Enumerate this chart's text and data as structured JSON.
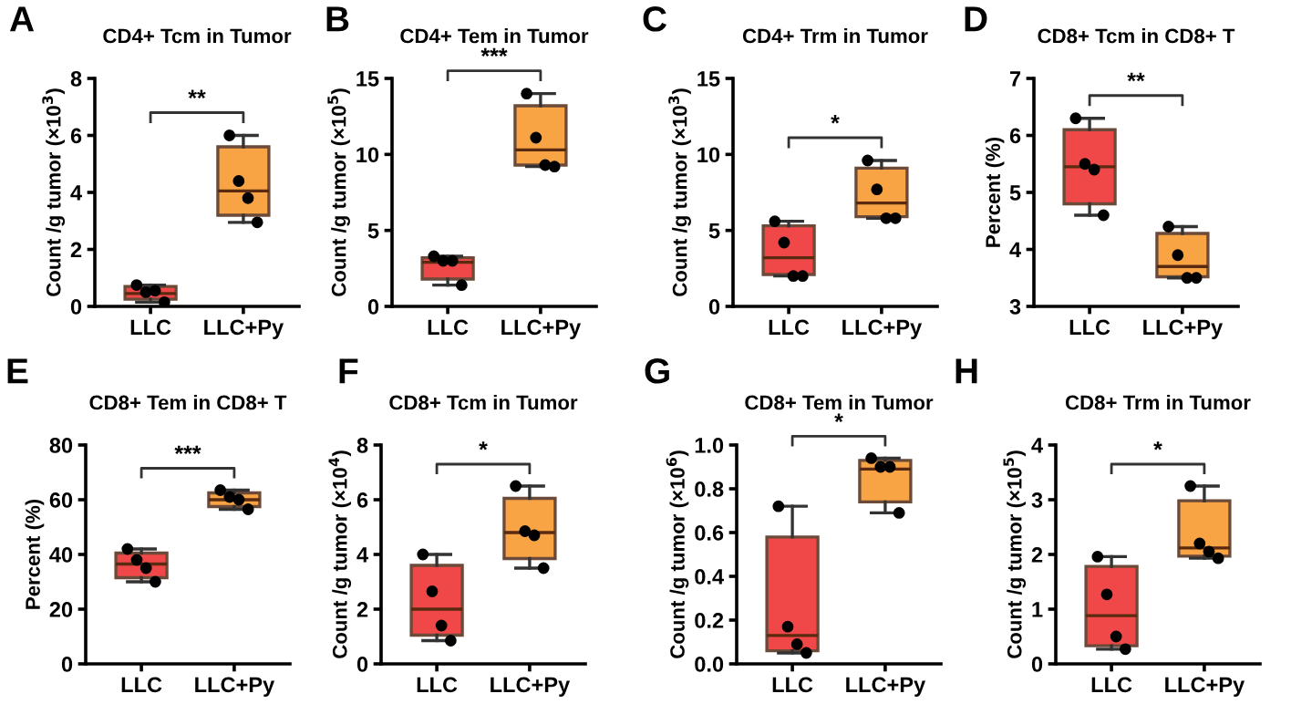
{
  "chart_data": [
    {
      "type": "box",
      "title": "CD4+ Tcm in Tumor",
      "ylabel": "Count /g tumor (×10$^{3}$)",
      "categories": [
        "LLC",
        "LLC+Py"
      ],
      "ylim": [
        0,
        8
      ],
      "yticks": [
        0,
        2,
        4,
        6,
        8
      ],
      "colors": [
        "#f04848",
        "#f8a444"
      ],
      "annotations": [
        "A",
        "**"
      ],
      "boxes": [
        {
          "low": 0.15,
          "q1": 0.25,
          "median": 0.45,
          "q3": 0.7,
          "high": 0.75
        },
        {
          "low": 2.95,
          "q1": 3.2,
          "median": 4.05,
          "q3": 5.6,
          "high": 6.0
        }
      ],
      "series": [
        {
          "type": "scatter",
          "color": "#000000",
          "x": [
            "LLC",
            "LLC",
            "LLC",
            "LLC",
            "LLC+Py",
            "LLC+Py",
            "LLC+Py",
            "LLC+Py"
          ],
          "values": [
            0.75,
            0.5,
            0.55,
            0.15,
            6.0,
            4.4,
            3.8,
            2.95
          ]
        }
      ]
    },
    {
      "type": "box",
      "title": "CD4+ Tem in Tumor",
      "ylabel": "Count /g tumor (×10$^{5}$)",
      "categories": [
        "LLC",
        "LLC+Py"
      ],
      "ylim": [
        0,
        15
      ],
      "yticks": [
        0,
        5,
        10,
        15
      ],
      "colors": [
        "#f04848",
        "#f8a444"
      ],
      "annotations": [
        "B",
        "***"
      ],
      "boxes": [
        {
          "low": 1.4,
          "q1": 1.8,
          "median": 2.9,
          "q3": 3.2,
          "high": 3.3
        },
        {
          "low": 9.2,
          "q1": 9.3,
          "median": 10.3,
          "q3": 13.2,
          "high": 14.0
        }
      ],
      "series": [
        {
          "type": "scatter",
          "color": "#000000",
          "x": [
            "LLC",
            "LLC",
            "LLC",
            "LLC",
            "LLC+Py",
            "LLC+Py",
            "LLC+Py",
            "LLC+Py"
          ],
          "values": [
            3.3,
            3.0,
            3.0,
            1.4,
            14.0,
            11.1,
            9.3,
            9.2
          ]
        }
      ]
    },
    {
      "type": "box",
      "title": "CD4+ Trm in Tumor",
      "ylabel": "Count /g tumor (×10$^{3}$)",
      "categories": [
        "LLC",
        "LLC+Py"
      ],
      "ylim": [
        0,
        15
      ],
      "yticks": [
        0,
        5,
        10,
        15
      ],
      "colors": [
        "#f04848",
        "#f8a444"
      ],
      "annotations": [
        "C",
        "*"
      ],
      "boxes": [
        {
          "low": 2.0,
          "q1": 2.1,
          "median": 3.2,
          "q3": 5.3,
          "high": 5.6
        },
        {
          "low": 5.8,
          "q1": 5.9,
          "median": 6.8,
          "q3": 9.1,
          "high": 9.6
        }
      ],
      "series": [
        {
          "type": "scatter",
          "color": "#000000",
          "x": [
            "LLC",
            "LLC",
            "LLC",
            "LLC",
            "LLC+Py",
            "LLC+Py",
            "LLC+Py",
            "LLC+Py"
          ],
          "values": [
            5.6,
            4.2,
            2.0,
            2.0,
            9.6,
            7.7,
            5.8,
            5.8
          ]
        }
      ]
    },
    {
      "type": "box",
      "title": "CD8+ Tcm in CD8+ T",
      "ylabel": "Percent (%)",
      "categories": [
        "LLC",
        "LLC+Py"
      ],
      "ylim": [
        3,
        7
      ],
      "yticks": [
        3,
        4,
        5,
        6,
        7
      ],
      "colors": [
        "#f04848",
        "#f8a444"
      ],
      "annotations": [
        "D",
        "**"
      ],
      "boxes": [
        {
          "low": 4.6,
          "q1": 4.8,
          "median": 5.45,
          "q3": 6.1,
          "high": 6.3
        },
        {
          "low": 3.5,
          "q1": 3.52,
          "median": 3.7,
          "q3": 4.28,
          "high": 4.4
        }
      ],
      "series": [
        {
          "type": "scatter",
          "color": "#000000",
          "x": [
            "LLC",
            "LLC",
            "LLC",
            "LLC",
            "LLC+Py",
            "LLC+Py",
            "LLC+Py",
            "LLC+Py"
          ],
          "values": [
            6.3,
            5.5,
            5.4,
            4.6,
            4.4,
            3.9,
            3.5,
            3.5
          ]
        }
      ]
    },
    {
      "type": "box",
      "title": "CD8+ Tem in CD8+ T",
      "ylabel": "Percent (%)",
      "categories": [
        "LLC",
        "LLC+Py"
      ],
      "ylim": [
        0,
        80
      ],
      "yticks": [
        0,
        20,
        40,
        60,
        80
      ],
      "colors": [
        "#f04848",
        "#f8a444"
      ],
      "annotations": [
        "E",
        "***"
      ],
      "boxes": [
        {
          "low": 30,
          "q1": 31.5,
          "median": 36.5,
          "q3": 40.5,
          "high": 42
        },
        {
          "low": 56.5,
          "q1": 57.5,
          "median": 60,
          "q3": 62.5,
          "high": 63.5
        }
      ],
      "series": [
        {
          "type": "scatter",
          "color": "#000000",
          "x": [
            "LLC",
            "LLC",
            "LLC",
            "LLC",
            "LLC+Py",
            "LLC+Py",
            "LLC+Py",
            "LLC+Py"
          ],
          "values": [
            42,
            38,
            35,
            30,
            63.5,
            61,
            60,
            56.5
          ]
        }
      ]
    },
    {
      "type": "box",
      "title": "CD8+ Tcm in Tumor",
      "ylabel": "Count /g tumor (×10$^{4}$)",
      "categories": [
        "LLC",
        "LLC+Py"
      ],
      "ylim": [
        0,
        8
      ],
      "yticks": [
        0,
        2,
        4,
        6,
        8
      ],
      "colors": [
        "#f04848",
        "#f8a444"
      ],
      "annotations": [
        "F",
        "*"
      ],
      "boxes": [
        {
          "low": 0.85,
          "q1": 1.05,
          "median": 2.0,
          "q3": 3.6,
          "high": 4.0
        },
        {
          "low": 3.5,
          "q1": 3.85,
          "median": 4.8,
          "q3": 6.05,
          "high": 6.5
        }
      ],
      "series": [
        {
          "type": "scatter",
          "color": "#000000",
          "x": [
            "LLC",
            "LLC",
            "LLC",
            "LLC",
            "LLC+Py",
            "LLC+Py",
            "LLC+Py",
            "LLC+Py"
          ],
          "values": [
            4.0,
            2.65,
            1.4,
            0.85,
            6.5,
            4.85,
            4.7,
            3.5
          ]
        }
      ]
    },
    {
      "type": "box",
      "title": "CD8+ Tem in Tumor",
      "ylabel": "Count /g tumor (×10$^{6}$)",
      "categories": [
        "LLC",
        "LLC+Py"
      ],
      "ylim": [
        0,
        1.0
      ],
      "yticks": [
        {
          "value": 0,
          "label": "0.0"
        },
        0.2,
        0.4,
        0.6,
        0.8,
        {
          "value": 1.0,
          "label": "1.0"
        }
      ],
      "colors": [
        "#f04848",
        "#f8a444"
      ],
      "annotations": [
        "G",
        "*"
      ],
      "boxes": [
        {
          "low": 0.05,
          "q1": 0.06,
          "median": 0.13,
          "q3": 0.58,
          "high": 0.72
        },
        {
          "low": 0.69,
          "q1": 0.74,
          "median": 0.89,
          "q3": 0.93,
          "high": 0.94
        }
      ],
      "series": [
        {
          "type": "scatter",
          "color": "#000000",
          "x": [
            "LLC",
            "LLC",
            "LLC",
            "LLC",
            "LLC+Py",
            "LLC+Py",
            "LLC+Py",
            "LLC+Py"
          ],
          "values": [
            0.72,
            0.17,
            0.09,
            0.05,
            0.94,
            0.9,
            0.9,
            0.69
          ]
        }
      ]
    },
    {
      "type": "box",
      "title": "CD8+ Trm in Tumor",
      "ylabel": "Count /g tumor (×10$^{5}$)",
      "categories": [
        "LLC",
        "LLC+Py"
      ],
      "ylim": [
        0,
        4
      ],
      "yticks": [
        0,
        1,
        2,
        3,
        4
      ],
      "colors": [
        "#f04848",
        "#f8a444"
      ],
      "annotations": [
        "H",
        "*"
      ],
      "boxes": [
        {
          "low": 0.27,
          "q1": 0.33,
          "median": 0.88,
          "q3": 1.78,
          "high": 1.96
        },
        {
          "low": 1.93,
          "q1": 1.97,
          "median": 2.12,
          "q3": 2.98,
          "high": 3.25
        }
      ],
      "series": [
        {
          "type": "scatter",
          "color": "#000000",
          "x": [
            "LLC",
            "LLC",
            "LLC",
            "LLC",
            "LLC+Py",
            "LLC+Py",
            "LLC+Py",
            "LLC+Py"
          ],
          "values": [
            1.96,
            1.27,
            0.5,
            0.27,
            3.25,
            2.2,
            2.05,
            1.93
          ]
        }
      ]
    }
  ]
}
